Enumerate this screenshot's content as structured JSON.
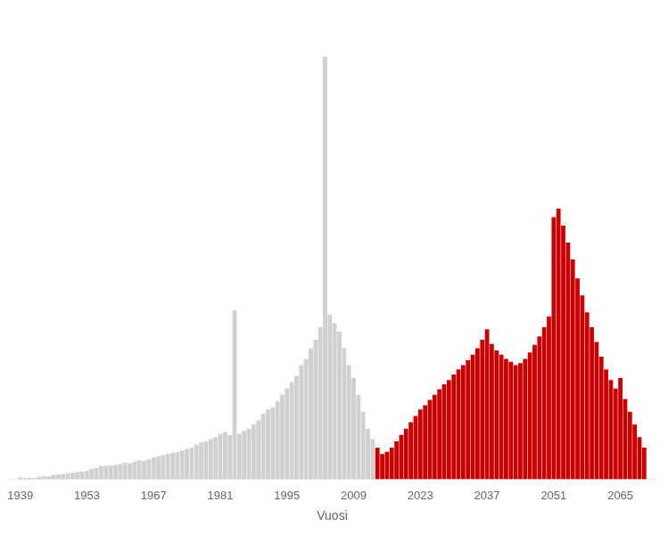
{
  "chart_data": {
    "type": "bar",
    "xlabel": "Vuosi",
    "x": [
      1939,
      1940,
      1941,
      1942,
      1943,
      1944,
      1945,
      1946,
      1947,
      1948,
      1949,
      1950,
      1951,
      1952,
      1953,
      1954,
      1955,
      1956,
      1957,
      1958,
      1959,
      1960,
      1961,
      1962,
      1963,
      1964,
      1965,
      1966,
      1967,
      1968,
      1969,
      1970,
      1971,
      1972,
      1973,
      1974,
      1975,
      1976,
      1977,
      1978,
      1979,
      1980,
      1981,
      1982,
      1983,
      1984,
      1985,
      1986,
      1987,
      1988,
      1989,
      1990,
      1991,
      1992,
      1993,
      1994,
      1995,
      1996,
      1997,
      1998,
      1999,
      2000,
      2001,
      2002,
      2003,
      2004,
      2005,
      2006,
      2007,
      2008,
      2009,
      2010,
      2011,
      2012,
      2013,
      2014,
      2015,
      2016,
      2017,
      2018,
      2019,
      2020,
      2021,
      2022,
      2023,
      2024,
      2025,
      2026,
      2027,
      2028,
      2029,
      2030,
      2031,
      2032,
      2033,
      2034,
      2035,
      2036,
      2037,
      2038,
      2039,
      2040,
      2041,
      2042,
      2043,
      2044,
      2045,
      2046,
      2047,
      2048,
      2049,
      2050,
      2051,
      2052,
      2053,
      2054,
      2055,
      2056,
      2057,
      2058,
      2059,
      2060,
      2061,
      2062,
      2063,
      2064,
      2065,
      2066,
      2067,
      2068,
      2069,
      2070
    ],
    "values": [
      0.005,
      0.003,
      0.004,
      0.003,
      0.006,
      0.007,
      0.007,
      0.01,
      0.012,
      0.013,
      0.015,
      0.016,
      0.017,
      0.018,
      0.02,
      0.025,
      0.027,
      0.032,
      0.032,
      0.033,
      0.034,
      0.036,
      0.04,
      0.038,
      0.042,
      0.045,
      0.044,
      0.047,
      0.052,
      0.055,
      0.057,
      0.06,
      0.063,
      0.065,
      0.068,
      0.072,
      0.075,
      0.082,
      0.087,
      0.09,
      0.095,
      0.1,
      0.108,
      0.112,
      0.105,
      0.4,
      0.108,
      0.115,
      0.12,
      0.13,
      0.14,
      0.155,
      0.165,
      0.17,
      0.185,
      0.2,
      0.215,
      0.23,
      0.245,
      0.27,
      0.285,
      0.31,
      0.33,
      0.36,
      1.0,
      0.39,
      0.37,
      0.35,
      0.31,
      0.27,
      0.24,
      0.2,
      0.16,
      0.12,
      0.095,
      0.075,
      0.06,
      0.065,
      0.075,
      0.09,
      0.105,
      0.12,
      0.135,
      0.15,
      0.165,
      0.175,
      0.188,
      0.2,
      0.213,
      0.225,
      0.235,
      0.248,
      0.26,
      0.27,
      0.282,
      0.295,
      0.31,
      0.33,
      0.355,
      0.32,
      0.305,
      0.295,
      0.285,
      0.278,
      0.27,
      0.275,
      0.285,
      0.3,
      0.318,
      0.338,
      0.36,
      0.385,
      0.62,
      0.64,
      0.6,
      0.56,
      0.52,
      0.475,
      0.435,
      0.395,
      0.36,
      0.325,
      0.29,
      0.26,
      0.235,
      0.215,
      0.24,
      0.19,
      0.16,
      0.13,
      0.1,
      0.075
    ],
    "colors": [
      "#d0d0d0",
      "#d0d0d0",
      "#d0d0d0",
      "#d0d0d0",
      "#d0d0d0",
      "#d0d0d0",
      "#d0d0d0",
      "#d0d0d0",
      "#d0d0d0",
      "#d0d0d0",
      "#d0d0d0",
      "#d0d0d0",
      "#d0d0d0",
      "#d0d0d0",
      "#d0d0d0",
      "#d0d0d0",
      "#d0d0d0",
      "#d0d0d0",
      "#d0d0d0",
      "#d0d0d0",
      "#d0d0d0",
      "#d0d0d0",
      "#d0d0d0",
      "#d0d0d0",
      "#d0d0d0",
      "#d0d0d0",
      "#d0d0d0",
      "#d0d0d0",
      "#d0d0d0",
      "#d0d0d0",
      "#d0d0d0",
      "#d0d0d0",
      "#d0d0d0",
      "#d0d0d0",
      "#d0d0d0",
      "#d0d0d0",
      "#d0d0d0",
      "#d0d0d0",
      "#d0d0d0",
      "#d0d0d0",
      "#d0d0d0",
      "#d0d0d0",
      "#d0d0d0",
      "#d0d0d0",
      "#d0d0d0",
      "#d0d0d0",
      "#d0d0d0",
      "#d0d0d0",
      "#d0d0d0",
      "#d0d0d0",
      "#d0d0d0",
      "#d0d0d0",
      "#d0d0d0",
      "#d0d0d0",
      "#d0d0d0",
      "#d0d0d0",
      "#d0d0d0",
      "#d0d0d0",
      "#d0d0d0",
      "#d0d0d0",
      "#d0d0d0",
      "#d0d0d0",
      "#d0d0d0",
      "#d0d0d0",
      "#d0d0d0",
      "#d0d0d0",
      "#d0d0d0",
      "#d0d0d0",
      "#d0d0d0",
      "#d0d0d0",
      "#d0d0d0",
      "#d0d0d0",
      "#d0d0d0",
      "#d0d0d0",
      "#d0d0d0",
      "#cc0000",
      "#cc0000",
      "#cc0000",
      "#cc0000",
      "#cc0000",
      "#cc0000",
      "#cc0000",
      "#cc0000",
      "#cc0000",
      "#cc0000",
      "#cc0000",
      "#cc0000",
      "#cc0000",
      "#cc0000",
      "#cc0000",
      "#cc0000",
      "#cc0000",
      "#cc0000",
      "#cc0000",
      "#cc0000",
      "#cc0000",
      "#cc0000",
      "#cc0000",
      "#cc0000",
      "#cc0000",
      "#cc0000",
      "#cc0000",
      "#cc0000",
      "#cc0000",
      "#cc0000",
      "#cc0000",
      "#cc0000",
      "#cc0000",
      "#cc0000",
      "#cc0000",
      "#cc0000",
      "#cc0000",
      "#cc0000",
      "#cc0000",
      "#cc0000",
      "#cc0000",
      "#cc0000",
      "#cc0000",
      "#cc0000",
      "#cc0000",
      "#cc0000",
      "#cc0000",
      "#cc0000",
      "#cc0000",
      "#cc0000",
      "#cc0000",
      "#cc0000",
      "#cc0000",
      "#cc0000",
      "#cc0000",
      "#cc0000",
      "#cc0000"
    ],
    "xlim": [
      1937,
      2072
    ],
    "xticks": [
      1939,
      1953,
      1967,
      1981,
      1995,
      2009,
      2023,
      2037,
      2051,
      2065
    ],
    "ylim": [
      0,
      1.1
    ],
    "tick_labels": "x",
    "grid": false
  }
}
